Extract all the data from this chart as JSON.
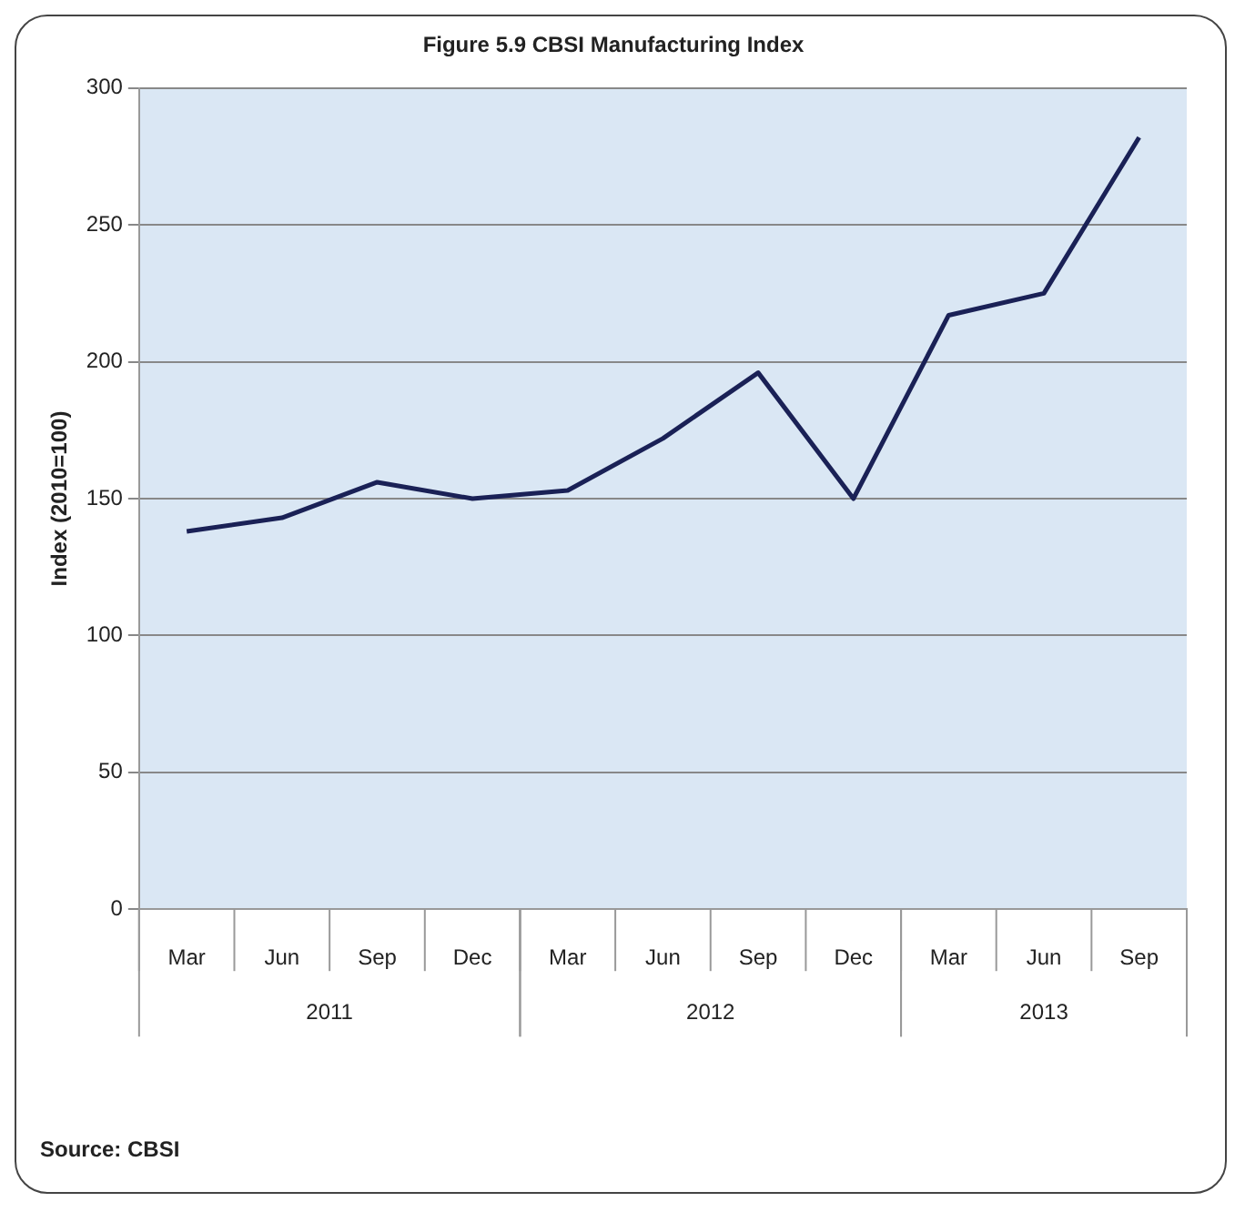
{
  "chart_data": {
    "type": "line",
    "title": "Figure 5.9 CBSI Manufacturing Index",
    "ylabel": "Index (2010=100)",
    "categories": [
      "Mar",
      "Jun",
      "Sep",
      "Dec",
      "Mar",
      "Jun",
      "Sep",
      "Dec",
      "Mar",
      "Jun",
      "Sep"
    ],
    "series": [
      {
        "color": "#1a2156",
        "values": [
          138,
          143,
          156,
          150,
          153,
          172,
          196,
          150,
          217,
          225,
          282
        ]
      }
    ],
    "ylim": [
      0,
      300
    ],
    "yticks": [
      0,
      50,
      100,
      150,
      200,
      250,
      300
    ],
    "grid": "y",
    "legend": false,
    "marker": "none",
    "line_style": "solid",
    "annotations": [
      "2011",
      "2012",
      "2013",
      "Source: CBSI"
    ]
  }
}
